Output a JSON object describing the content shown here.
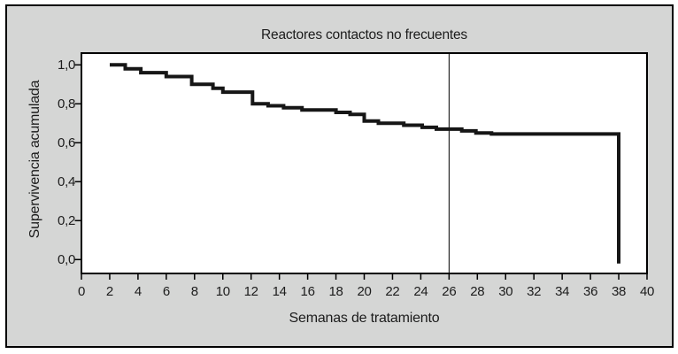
{
  "figure": {
    "kind": "static-statistical-figure"
  },
  "chart_data": {
    "type": "line",
    "variant": "kaplan_meier_step",
    "title": "Reactores contactos no frecuentes",
    "xlabel": "Semanas de tratamiento",
    "ylabel": "Supervivencia acumulada",
    "xlim": [
      0,
      40
    ],
    "ylim": [
      0.0,
      1.0
    ],
    "grid": false,
    "legend": "none",
    "x_tick_values": [
      0,
      2,
      4,
      6,
      8,
      10,
      12,
      14,
      16,
      18,
      20,
      22,
      24,
      26,
      28,
      30,
      32,
      34,
      36,
      38,
      40
    ],
    "x_tick_labels": [
      "0",
      "2",
      "4",
      "6",
      "8",
      "10",
      "12",
      "14",
      "16",
      "18",
      "20",
      "22",
      "24",
      "26",
      "28",
      "30",
      "32",
      "34",
      "36",
      "38",
      "40"
    ],
    "y_tick_values": [
      0.0,
      0.2,
      0.4,
      0.6,
      0.8,
      1.0
    ],
    "y_tick_labels": [
      "0,0",
      "0,2",
      "0,4",
      "0,6",
      "0,8",
      "1,0"
    ],
    "reference_line_x": 26,
    "series": [
      {
        "name": "Supervivencia acumulada",
        "color": "#161616",
        "step_points": [
          [
            2.0,
            1.0
          ],
          [
            3.1,
            0.98
          ],
          [
            4.2,
            0.96
          ],
          [
            6.0,
            0.94
          ],
          [
            7.8,
            0.9
          ],
          [
            9.3,
            0.88
          ],
          [
            10.0,
            0.86
          ],
          [
            12.1,
            0.8
          ],
          [
            13.2,
            0.79
          ],
          [
            14.3,
            0.78
          ],
          [
            15.6,
            0.768
          ],
          [
            18.0,
            0.756
          ],
          [
            19.0,
            0.746
          ],
          [
            20.0,
            0.712
          ],
          [
            21.0,
            0.7
          ],
          [
            22.8,
            0.69
          ],
          [
            24.1,
            0.679
          ],
          [
            25.1,
            0.67
          ],
          [
            26.9,
            0.661
          ],
          [
            27.9,
            0.65
          ],
          [
            29.0,
            0.645
          ],
          [
            38.0,
            0.645
          ],
          [
            38.0,
            -0.02
          ]
        ]
      }
    ],
    "colors": {
      "background": "#d5d6d5",
      "plot_background": "#ffffff",
      "axis": "#000000",
      "text": "#1c1c1c",
      "reference_line": "#000000"
    }
  }
}
